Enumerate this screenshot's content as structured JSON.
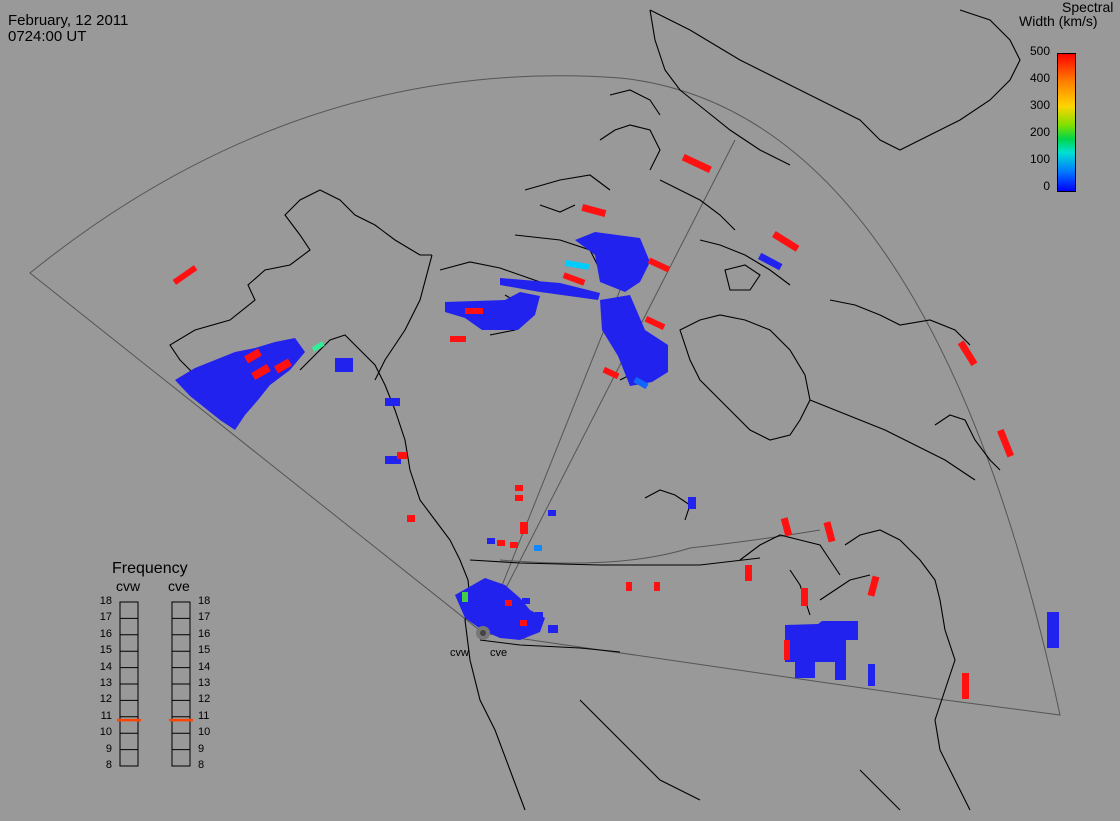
{
  "header": {
    "date": "February, 12 2011",
    "time": "0724:00 UT"
  },
  "colorbar": {
    "title_line1": "Spectral",
    "title_line2": "Width (km/s)",
    "ticks": [
      "500",
      "400",
      "300",
      "200",
      "100",
      "0"
    ],
    "colors": [
      "#0000ff",
      "#0078ff",
      "#00e0d4",
      "#00d64a",
      "#7fe000",
      "#ffd400",
      "#ff7f00",
      "#ff0000"
    ]
  },
  "frequency_panel": {
    "title": "Frequency",
    "stations": [
      "cvw",
      "cve"
    ],
    "scale": [
      "18",
      "17",
      "16",
      "15",
      "14",
      "13",
      "12",
      "11",
      "10",
      "9",
      "8"
    ],
    "cvw_mhz": 10.8,
    "cve_mhz": 10.8,
    "marker_color": "#ff4400"
  },
  "radar_sites": {
    "cvw_label": "cvw",
    "cve_label": "cve"
  },
  "colors": {
    "background": "#999999",
    "coast": "#000000",
    "fov_outline": "#555555",
    "low_width": "#2222ee",
    "high_width": "#ff1111",
    "mid_width": "#00ccff"
  }
}
